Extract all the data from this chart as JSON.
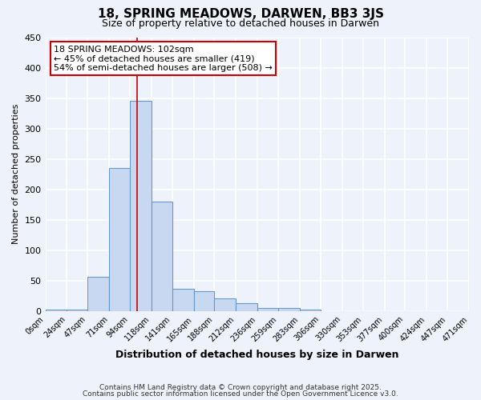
{
  "title": "18, SPRING MEADOWS, DARWEN, BB3 3JS",
  "subtitle": "Size of property relative to detached houses in Darwen",
  "xlabel": "Distribution of detached houses by size in Darwen",
  "ylabel": "Number of detached properties",
  "bar_color": "#c8d8f0",
  "bar_edge_color": "#6699cc",
  "background_color": "#eef2fa",
  "grid_color": "#ffffff",
  "bin_edges": [
    0,
    24,
    47,
    71,
    94,
    118,
    141,
    165,
    188,
    212,
    236,
    259,
    283,
    306,
    330,
    353,
    377,
    400,
    424,
    447,
    471
  ],
  "bin_labels": [
    "0sqm",
    "24sqm",
    "47sqm",
    "71sqm",
    "94sqm",
    "118sqm",
    "141sqm",
    "165sqm",
    "188sqm",
    "212sqm",
    "236sqm",
    "259sqm",
    "283sqm",
    "306sqm",
    "330sqm",
    "353sqm",
    "377sqm",
    "400sqm",
    "424sqm",
    "447sqm",
    "471sqm"
  ],
  "counts": [
    2,
    2,
    57,
    235,
    345,
    180,
    37,
    33,
    21,
    13,
    5,
    5,
    2,
    0,
    0,
    0,
    0,
    0,
    0,
    0
  ],
  "vline_x": 102,
  "vline_color": "#cc0000",
  "annotation_line1": "18 SPRING MEADOWS: 102sqm",
  "annotation_line2": "← 45% of detached houses are smaller (419)",
  "annotation_line3": "54% of semi-detached houses are larger (508) →",
  "annotation_box_facecolor": "#ffffff",
  "annotation_box_edgecolor": "#cc0000",
  "ylim": [
    0,
    450
  ],
  "yticks": [
    0,
    50,
    100,
    150,
    200,
    250,
    300,
    350,
    400,
    450
  ],
  "footnote1": "Contains HM Land Registry data © Crown copyright and database right 2025.",
  "footnote2": "Contains public sector information licensed under the Open Government Licence v3.0."
}
